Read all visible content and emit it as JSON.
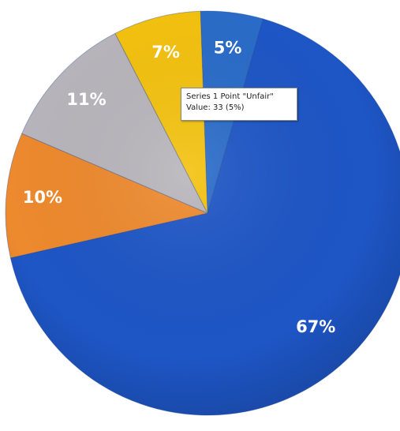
{
  "chart_data": {
    "type": "pie",
    "slices": [
      {
        "label": "5%",
        "value": 5,
        "color": "#2a6cc9"
      },
      {
        "label": "67%",
        "value": 67,
        "color": "#1e56c6"
      },
      {
        "label": "10%",
        "value": 10,
        "color": "#ee8a2e"
      },
      {
        "label": "11%",
        "value": 11,
        "color": "#b8b6bc"
      },
      {
        "label": "7%",
        "value": 7,
        "color": "#f4c20f"
      }
    ]
  },
  "tooltip": {
    "line1": "Series 1 Point \"Unfair\"",
    "line2": "Value: 33 (5%)"
  }
}
